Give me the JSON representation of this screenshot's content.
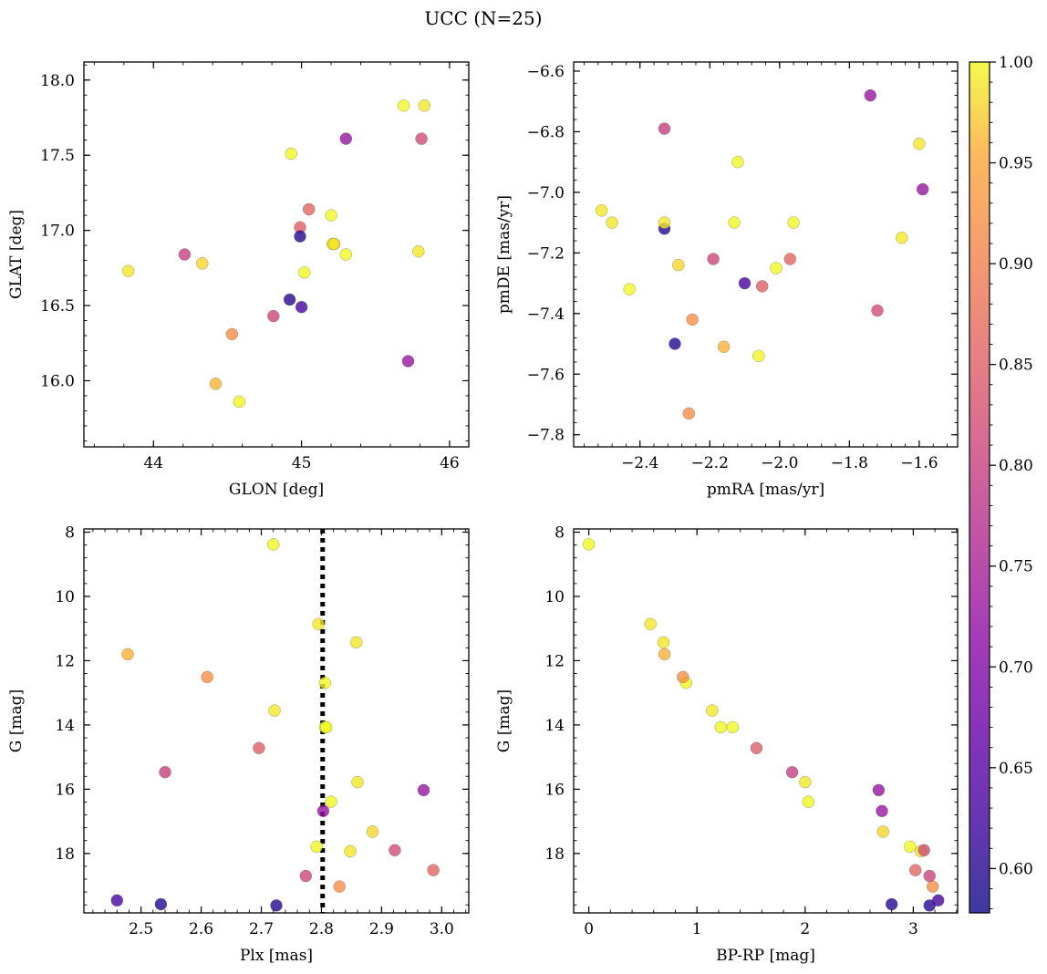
{
  "figure_title": "UCC (N=25)",
  "colorbar": {
    "colormap": "plasma",
    "range": [
      0.578,
      1.0
    ],
    "ticks": [
      0.6,
      0.65,
      0.7,
      0.75,
      0.8,
      0.85,
      0.9,
      0.95,
      1.0
    ],
    "tick_labels": [
      "0.60",
      "0.65",
      "0.70",
      "0.75",
      "0.80",
      "0.85",
      "0.90",
      "0.95",
      "1.00"
    ]
  },
  "chart_data": [
    {
      "type": "scatter",
      "id": "glon-glat",
      "xlabel": "GLON [deg]",
      "ylabel": "GLAT [deg]",
      "xlim": [
        43.53,
        46.13
      ],
      "ylim": [
        15.56,
        18.12
      ],
      "invert_y": false,
      "xticks": [
        44,
        45,
        46
      ],
      "xtick_labels": [
        "44",
        "45",
        "46"
      ],
      "yticks": [
        16.0,
        16.5,
        17.0,
        17.5,
        18.0
      ],
      "ytick_labels": [
        "16.0",
        "16.5",
        "17.0",
        "17.5",
        "18.0"
      ],
      "x": [
        44.99,
        45.05,
        45.22,
        44.33,
        44.93,
        44.21,
        44.81,
        45.2,
        45.0,
        45.02,
        45.21,
        45.3,
        44.99,
        44.53,
        45.72,
        45.3,
        44.92,
        45.22,
        45.81,
        44.42,
        45.79,
        45.83,
        45.69,
        44.58,
        43.83
      ],
      "y": [
        17.02,
        17.14,
        16.91,
        16.78,
        17.51,
        16.84,
        16.43,
        17.1,
        16.49,
        16.72,
        16.91,
        16.84,
        16.96,
        16.31,
        16.13,
        17.61,
        16.54,
        16.91,
        17.61,
        15.98,
        16.86,
        17.83,
        17.83,
        15.86,
        16.73
      ]
    },
    {
      "type": "scatter",
      "id": "pmra-pmde",
      "xlabel": "pmRA [mas/yr]",
      "ylabel": "pmDE [mas/yr]",
      "xlim": [
        -2.59,
        -1.49
      ],
      "ylim": [
        -7.84,
        -6.57
      ],
      "invert_y": false,
      "xticks": [
        -2.4,
        -2.2,
        -2.0,
        -1.8,
        -1.6
      ],
      "xtick_labels": [
        "−2.4",
        "−2.2",
        "−2.0",
        "−1.8",
        "−1.6"
      ],
      "yticks": [
        -7.8,
        -7.6,
        -7.4,
        -7.2,
        -7.0,
        -6.8,
        -6.6
      ],
      "ytick_labels": [
        "−7.8",
        "−7.6",
        "−7.4",
        "−7.2",
        "−7.0",
        "−6.8",
        "−6.6"
      ],
      "x": [
        -2.05,
        -1.97,
        -2.25,
        -2.29,
        -2.12,
        -2.33,
        -2.19,
        -2.01,
        -2.1,
        -1.96,
        -1.6,
        -2.13,
        -2.33,
        -2.26,
        -1.59,
        -1.74,
        -2.3,
        -2.33,
        -1.72,
        -2.16,
        -1.65,
        -2.48,
        -2.43,
        -2.06,
        -2.51
      ],
      "y": [
        -7.31,
        -7.22,
        -7.42,
        -7.24,
        -6.9,
        -6.79,
        -7.22,
        -7.25,
        -7.3,
        -7.1,
        -6.84,
        -7.1,
        -7.12,
        -7.73,
        -6.99,
        -6.68,
        -7.5,
        -7.1,
        -7.39,
        -7.51,
        -7.15,
        -7.1,
        -7.32,
        -7.54,
        -7.06
      ]
    },
    {
      "type": "scatter",
      "id": "plx-g",
      "xlabel": "Plx [mas]",
      "ylabel": "G [mag]",
      "xlim": [
        2.405,
        3.045
      ],
      "ylim": [
        7.9,
        19.85
      ],
      "invert_y": true,
      "xticks": [
        2.5,
        2.6,
        2.7,
        2.8,
        2.9,
        3.0
      ],
      "xtick_labels": [
        "2.5",
        "2.6",
        "2.7",
        "2.8",
        "2.9",
        "3.0"
      ],
      "yticks": [
        8,
        10,
        12,
        14,
        16,
        18
      ],
      "ytick_labels": [
        "8",
        "10",
        "12",
        "14",
        "16",
        "18"
      ],
      "vline": 2.802,
      "x": [
        2.696,
        2.986,
        2.83,
        2.885,
        2.806,
        2.54,
        2.774,
        2.806,
        2.46,
        2.808,
        2.86,
        2.816,
        2.533,
        2.61,
        2.97,
        2.803,
        2.725,
        2.848,
        2.922,
        2.478,
        2.858,
        2.722,
        2.792,
        2.72,
        2.795
      ],
      "y": [
        14.72,
        18.52,
        19.03,
        17.32,
        14.07,
        15.47,
        18.7,
        12.69,
        19.46,
        14.07,
        15.78,
        16.39,
        19.58,
        12.51,
        16.03,
        16.68,
        19.62,
        17.93,
        17.9,
        11.8,
        11.43,
        13.55,
        17.79,
        8.38,
        10.86
      ]
    },
    {
      "type": "scatter",
      "id": "bprp-g",
      "xlabel": "BP-RP [mag]",
      "ylabel": "G [mag]",
      "xlim": [
        -0.14,
        3.41
      ],
      "ylim": [
        7.9,
        19.85
      ],
      "invert_y": true,
      "xticks": [
        0,
        1,
        2,
        3
      ],
      "xtick_labels": [
        "0",
        "1",
        "2",
        "3"
      ],
      "yticks": [
        8,
        10,
        12,
        14,
        16,
        18
      ],
      "ytick_labels": [
        "8",
        "10",
        "12",
        "14",
        "16",
        "18"
      ],
      "x": [
        1.55,
        3.02,
        3.18,
        2.72,
        1.22,
        1.88,
        3.15,
        0.9,
        3.23,
        1.33,
        2.0,
        2.03,
        2.8,
        0.87,
        2.68,
        2.71,
        3.15,
        3.07,
        3.1,
        0.7,
        0.69,
        1.14,
        2.97,
        0.0,
        0.57
      ],
      "y": [
        14.72,
        18.52,
        19.03,
        17.32,
        14.07,
        15.47,
        18.7,
        12.69,
        19.46,
        14.07,
        15.78,
        16.39,
        19.58,
        12.51,
        16.03,
        16.68,
        19.62,
        17.93,
        17.9,
        11.8,
        11.43,
        13.55,
        17.79,
        8.38,
        10.86
      ]
    }
  ],
  "point_probabilities": [
    0.85,
    0.86,
    0.92,
    0.98,
    1.0,
    0.8,
    0.81,
    1.0,
    0.63,
    1.0,
    0.99,
    1.0,
    0.6,
    0.92,
    0.73,
    0.73,
    0.6,
    0.99,
    0.82,
    0.96,
    0.99,
    0.99,
    1.0,
    1.0,
    0.99
  ]
}
